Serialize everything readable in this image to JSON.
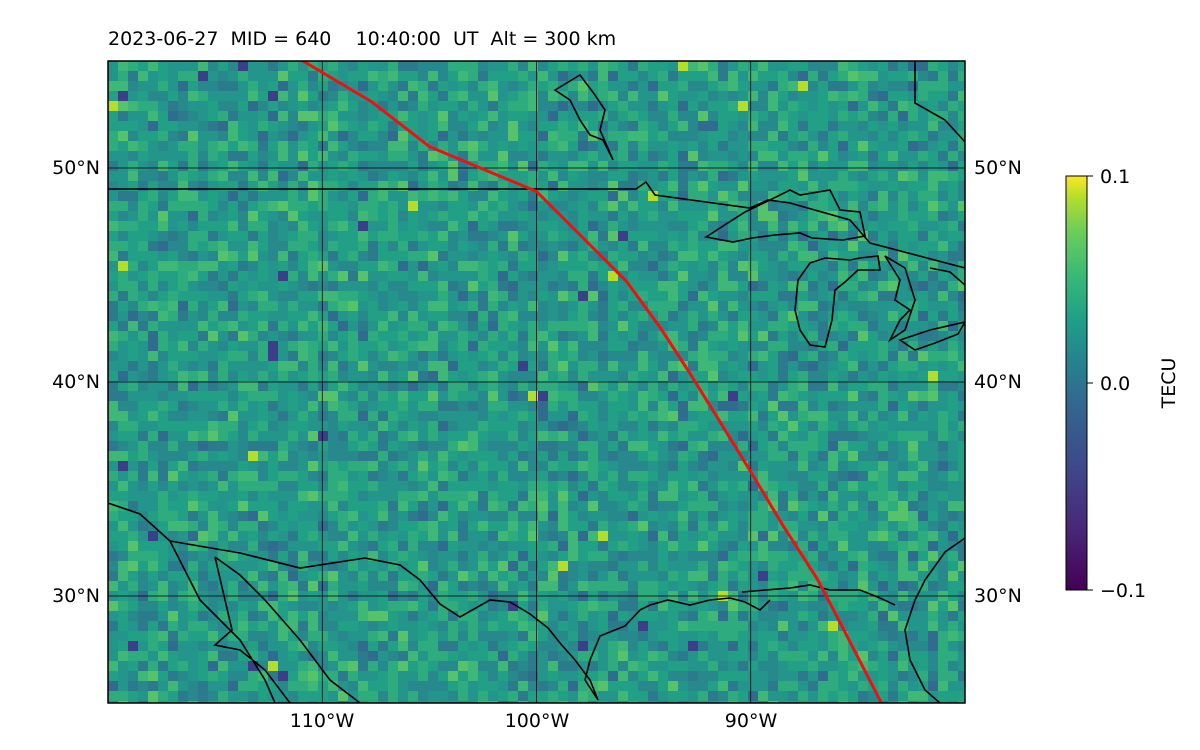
{
  "figure": {
    "title": "2023-06-27  MID = 640    10:40:00  UT  Alt = 300 km"
  },
  "map": {
    "lon_range": [
      -120,
      -80
    ],
    "lat_range": [
      25,
      55
    ],
    "lat_gridlines": [
      30,
      40,
      50
    ],
    "lon_gridlines": [
      -110,
      -100,
      -90
    ],
    "lat_labels": [
      "30°N",
      "40°N",
      "50°N"
    ],
    "lon_labels": [
      "110°W",
      "100°W",
      "90°W"
    ],
    "field": "Total electron content perturbation (TEC map, viridis colormap)",
    "track_color": "#ee1111",
    "track": [
      [
        -110.9,
        55
      ],
      [
        -107.7,
        53.1
      ],
      [
        -105,
        51
      ],
      [
        -100,
        48.9
      ],
      [
        -98,
        46.9
      ],
      [
        -95.8,
        44.7
      ],
      [
        -94.2,
        42.5
      ],
      [
        -92.9,
        40.5
      ],
      [
        -91.6,
        38.4
      ],
      [
        -90,
        35.8
      ],
      [
        -88.5,
        33.3
      ],
      [
        -86.9,
        30.8
      ],
      [
        -85.7,
        28.5
      ],
      [
        -83.9,
        25
      ]
    ],
    "coast_color": "#000000"
  },
  "colorbar": {
    "label": "TECU",
    "ticks": [
      "0.1",
      "0.0",
      "−0.1"
    ],
    "vmin": -0.1,
    "vmax": 0.1,
    "colormap": "viridis"
  }
}
